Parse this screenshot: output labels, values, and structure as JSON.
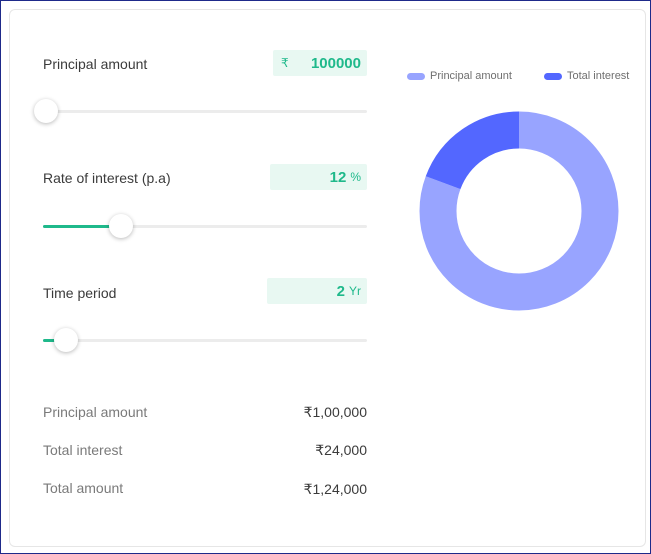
{
  "inputs": {
    "principal": {
      "label": "Principal amount",
      "currency": "₹",
      "value": "100000",
      "slider_fraction": 0.01
    },
    "rate": {
      "label": "Rate of interest (p.a)",
      "value": "12",
      "unit": "%",
      "slider_fraction": 0.24
    },
    "time": {
      "label": "Time period",
      "value": "2",
      "unit": "Yr",
      "slider_fraction": 0.07
    }
  },
  "summary": [
    {
      "label": "Principal amount",
      "value": "₹1,00,000"
    },
    {
      "label": "Total interest",
      "value": "₹24,000"
    },
    {
      "label": "Total amount",
      "value": "₹1,24,000"
    }
  ],
  "legend": {
    "principal": {
      "label": "Principal amount",
      "color": "#98a4ff"
    },
    "interest": {
      "label": "Total interest",
      "color": "#5367ff"
    }
  },
  "chart_data": {
    "type": "pie",
    "labels": [
      "Principal amount",
      "Total interest"
    ],
    "values": [
      100000,
      24000
    ],
    "colors": [
      "#98a4ff",
      "#5367ff"
    ],
    "donut": true
  },
  "colors": {
    "accent": "#1fb98b",
    "accent_bg": "#e8f8f2"
  }
}
